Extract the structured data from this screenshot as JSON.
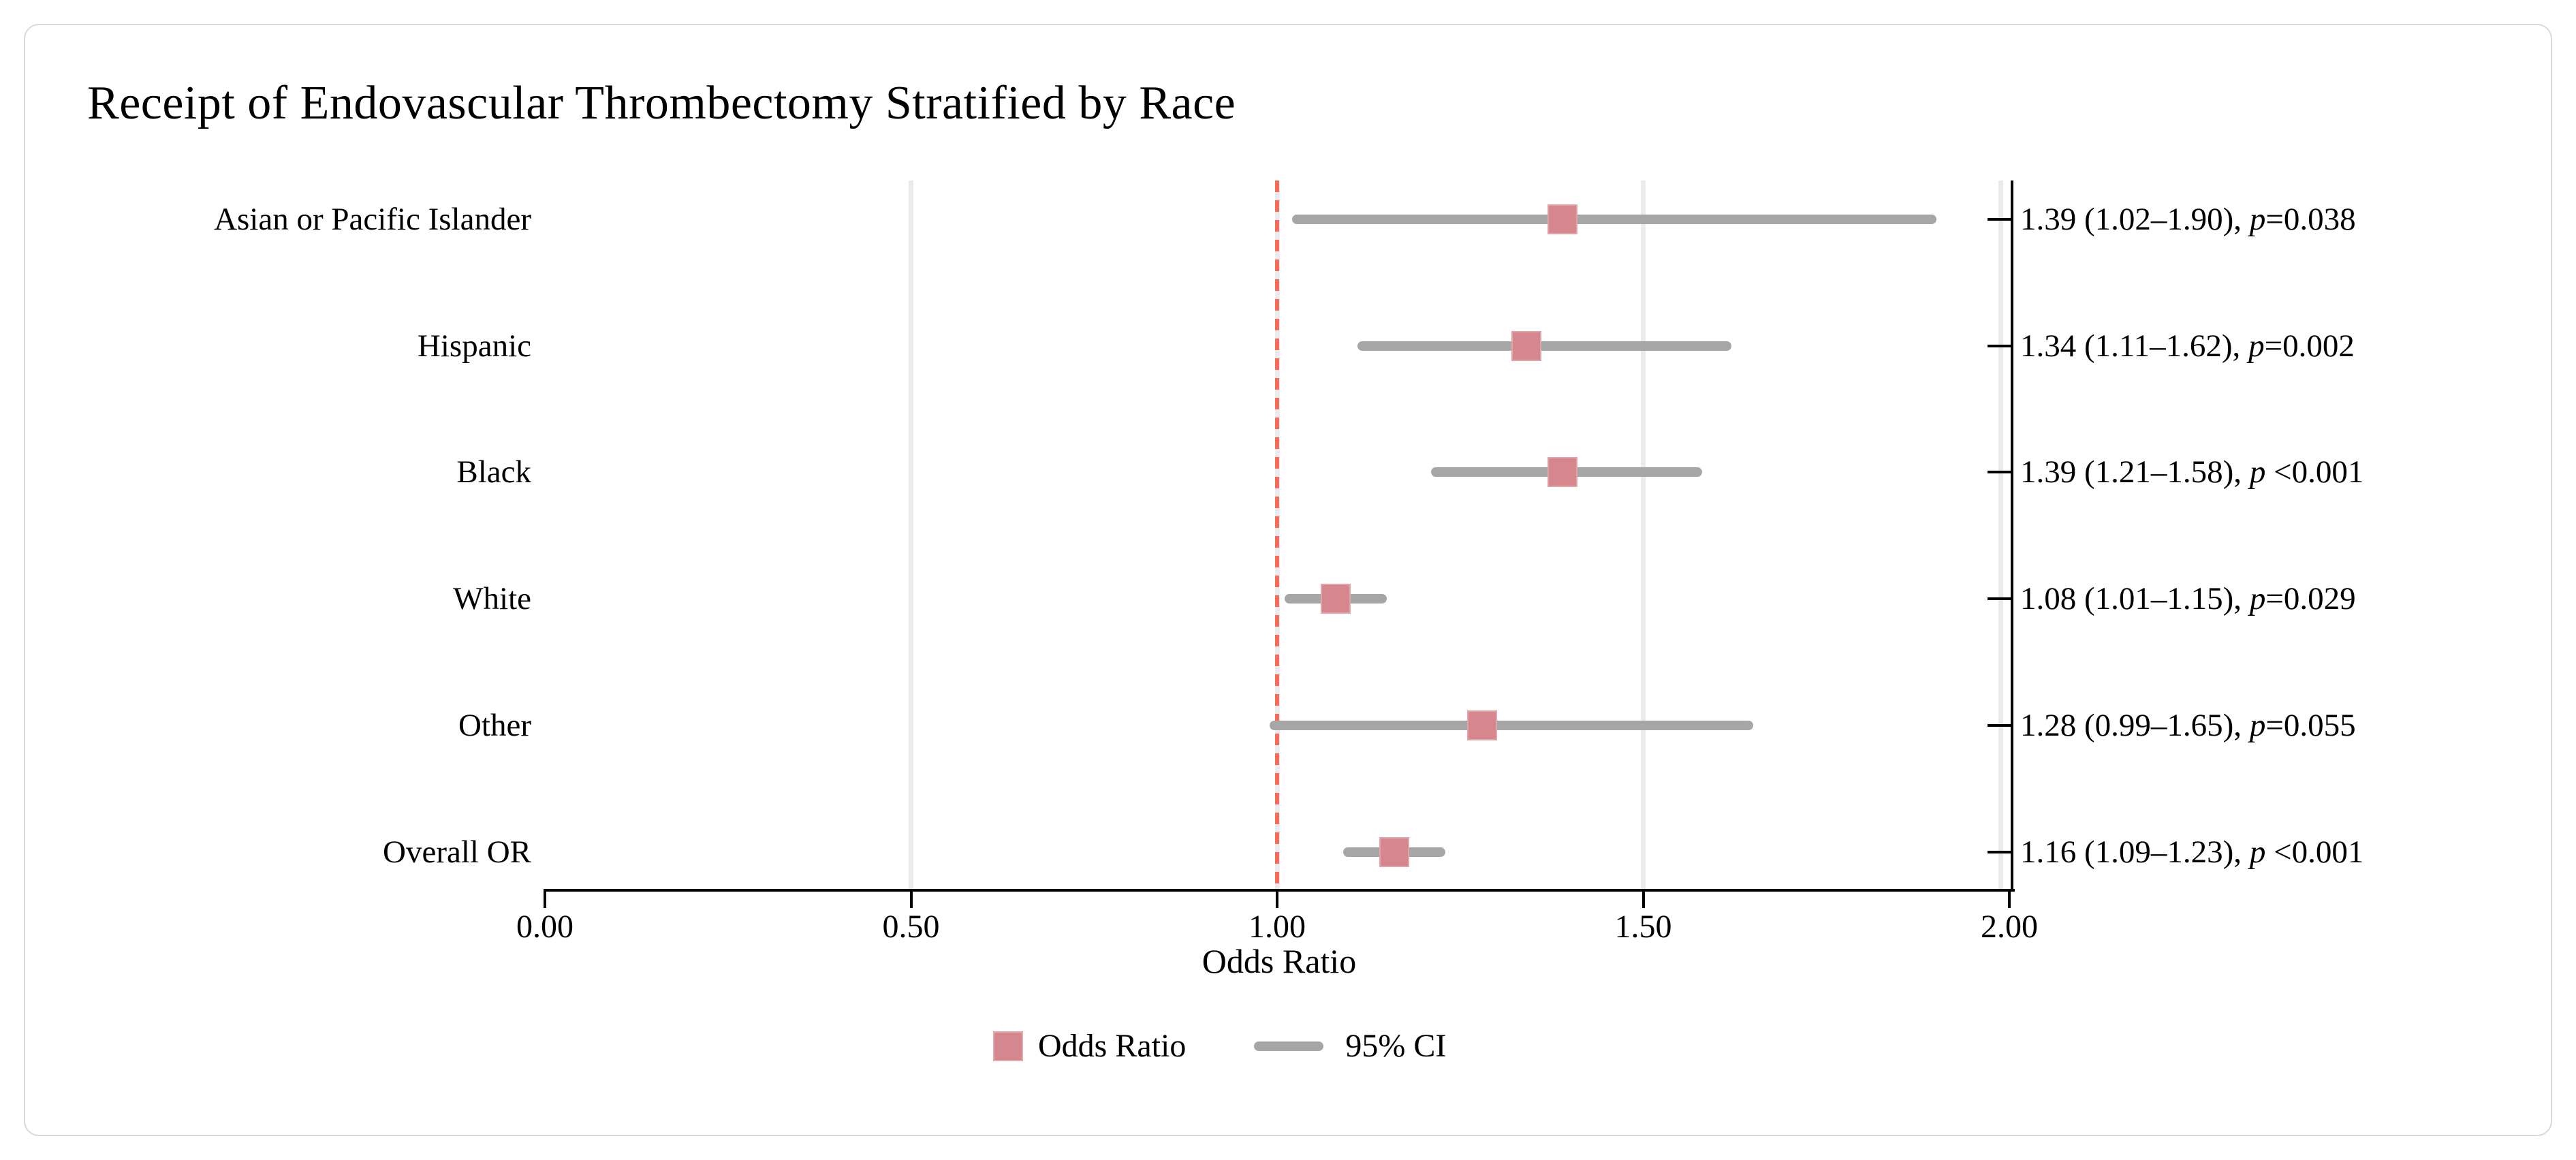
{
  "figure": {
    "title": "Receipt of Endovascular Thrombectomy Stratified by Race"
  },
  "chart_data": {
    "type": "scatter",
    "subtype": "forest-plot",
    "title": "Receipt of Endovascular Thrombectomy Stratified by Race",
    "xlabel": "Odds Ratio",
    "xlim": [
      0.0,
      2.0
    ],
    "x_ticks": [
      0.0,
      0.5,
      1.0,
      1.5,
      2.0
    ],
    "x_tick_labels": [
      "0.00",
      "0.50",
      "1.00",
      "1.50",
      "2.00"
    ],
    "gridlines": [
      0.5,
      1.0,
      1.5,
      2.0
    ],
    "grid": "on",
    "reference_line": 1.0,
    "legend_position": "bottom-center",
    "rows": [
      {
        "label": "Asian or Pacific Islander",
        "or": 1.39,
        "ci_low": 1.02,
        "ci_high": 1.9,
        "p": "0.038",
        "annotation": "1.39 (1.02–1.90), ",
        "p_symbol": "p",
        "p_rest": "=0.038"
      },
      {
        "label": "Hispanic",
        "or": 1.34,
        "ci_low": 1.11,
        "ci_high": 1.62,
        "p": "0.002",
        "annotation": "1.34 (1.11–1.62), ",
        "p_symbol": "p",
        "p_rest": "=0.002"
      },
      {
        "label": "Black",
        "or": 1.39,
        "ci_low": 1.21,
        "ci_high": 1.58,
        "p": "<0.001",
        "annotation": "1.39 (1.21–1.58), ",
        "p_symbol": "p",
        "p_rest": " <0.001"
      },
      {
        "label": "White",
        "or": 1.08,
        "ci_low": 1.01,
        "ci_high": 1.15,
        "p": "0.029",
        "annotation": "1.08 (1.01–1.15), ",
        "p_symbol": "p",
        "p_rest": "=0.029"
      },
      {
        "label": "Other",
        "or": 1.28,
        "ci_low": 0.99,
        "ci_high": 1.65,
        "p": "0.055",
        "annotation": "1.28 (0.99–1.65), ",
        "p_symbol": "p",
        "p_rest": "=0.055"
      },
      {
        "label": "Overall OR",
        "or": 1.16,
        "ci_low": 1.09,
        "ci_high": 1.23,
        "p": "<0.001",
        "annotation": "1.16 (1.09–1.23), ",
        "p_symbol": "p",
        "p_rest": " <0.001"
      }
    ],
    "legend": [
      {
        "marker": "square",
        "label": "Odds Ratio"
      },
      {
        "marker": "line",
        "label": "95% CI"
      }
    ]
  },
  "colors": {
    "marker": "#d6868d",
    "ci": "#a6a6a6",
    "reference": "#f96a57",
    "gridline": "#e9ebee",
    "axis": "#000000",
    "text": "#000000",
    "card_border": "#d9d9d9",
    "background": "#ffffff"
  }
}
